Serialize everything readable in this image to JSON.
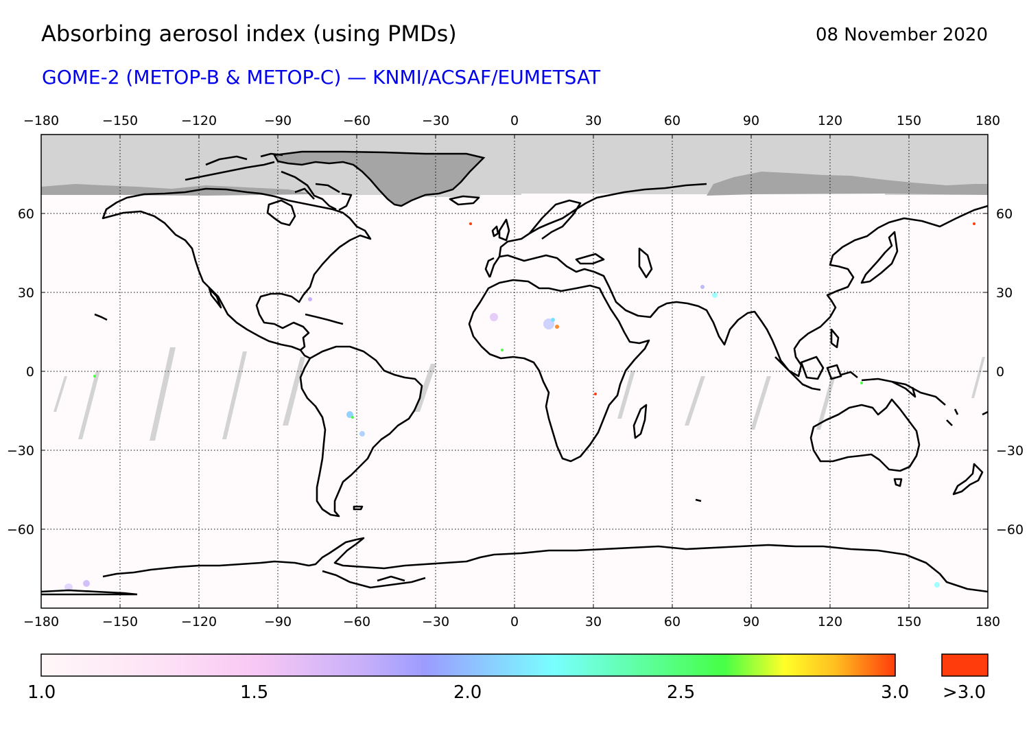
{
  "header": {
    "title": "Absorbing aerosol index (using PMDs)",
    "date": "08 November 2020",
    "subtitle": "GOME-2 (METOP-B & METOP-C) — KNMI/ACSAF/EUMETSAT"
  },
  "map": {
    "projection": "equirectangular",
    "lon_range": [
      -180,
      180
    ],
    "lat_range": [
      -90,
      90
    ],
    "lon_ticks": [
      "−180",
      "−150",
      "−120",
      "−90",
      "−60",
      "−30",
      "0",
      "30",
      "60",
      "90",
      "120",
      "150",
      "180"
    ],
    "lat_ticks": [
      "60",
      "30",
      "0",
      "−30",
      "−60"
    ],
    "gridlines": true,
    "no_data_color": "#d3d3d3",
    "land_ice_color": "#a5a5a5",
    "background_color": "#fffbfc",
    "coastline_color": "#000000"
  },
  "colorbar": {
    "min_label": "1.0",
    "labels": [
      "1.0",
      "1.5",
      "2.0",
      "2.5",
      "3.0"
    ],
    "overflow_label": ">3.0",
    "overflow_color": "#ff3c0b",
    "colors": [
      "#fff8f8",
      "#f8c8f4",
      "#9c9cff",
      "#78ffff",
      "#46ff46",
      "#ffff28",
      "#ff3c0b"
    ]
  }
}
